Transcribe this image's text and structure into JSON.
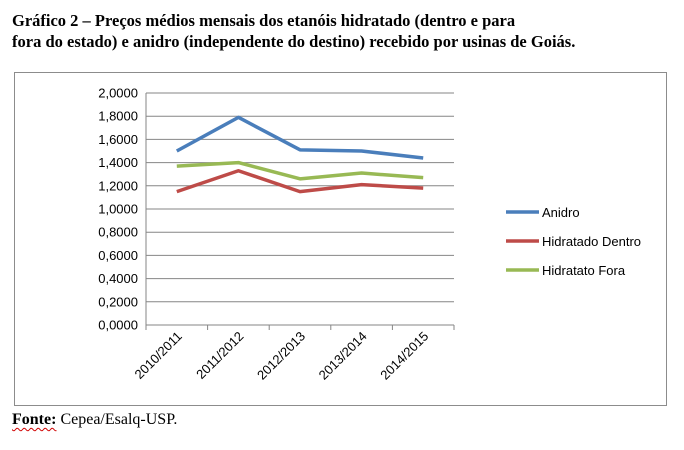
{
  "title_line1": "Gráfico 2 – Preços médios mensais dos etanóis hidratado (dentro e para",
  "title_line2": "fora do estado) e anidro (independente do destino) recebido por usinas de Goiás.",
  "source": {
    "label": "Fonte:",
    "text": " Cepea/Esalq-USP."
  },
  "chart_data": {
    "type": "line",
    "categories": [
      "2010/2011",
      "2011/2012",
      "2012/2013",
      "2013/2014",
      "2014/2015"
    ],
    "series": [
      {
        "name": "Anidro",
        "color": "#4a7ebb",
        "values": [
          1.5,
          1.79,
          1.51,
          1.5,
          1.44
        ]
      },
      {
        "name": "Hidratado Dentro",
        "color": "#be4b48",
        "values": [
          1.15,
          1.33,
          1.15,
          1.21,
          1.18
        ]
      },
      {
        "name": "Hidratato Fora",
        "color": "#98b954",
        "values": [
          1.37,
          1.4,
          1.26,
          1.31,
          1.27
        ]
      }
    ],
    "ylim": [
      0,
      2
    ],
    "yticks": [
      "0,0000",
      "0,2000",
      "0,4000",
      "0,6000",
      "0,8000",
      "1,0000",
      "1,2000",
      "1,4000",
      "1,6000",
      "1,8000",
      "2,0000"
    ],
    "grid": true,
    "legend": "right"
  }
}
